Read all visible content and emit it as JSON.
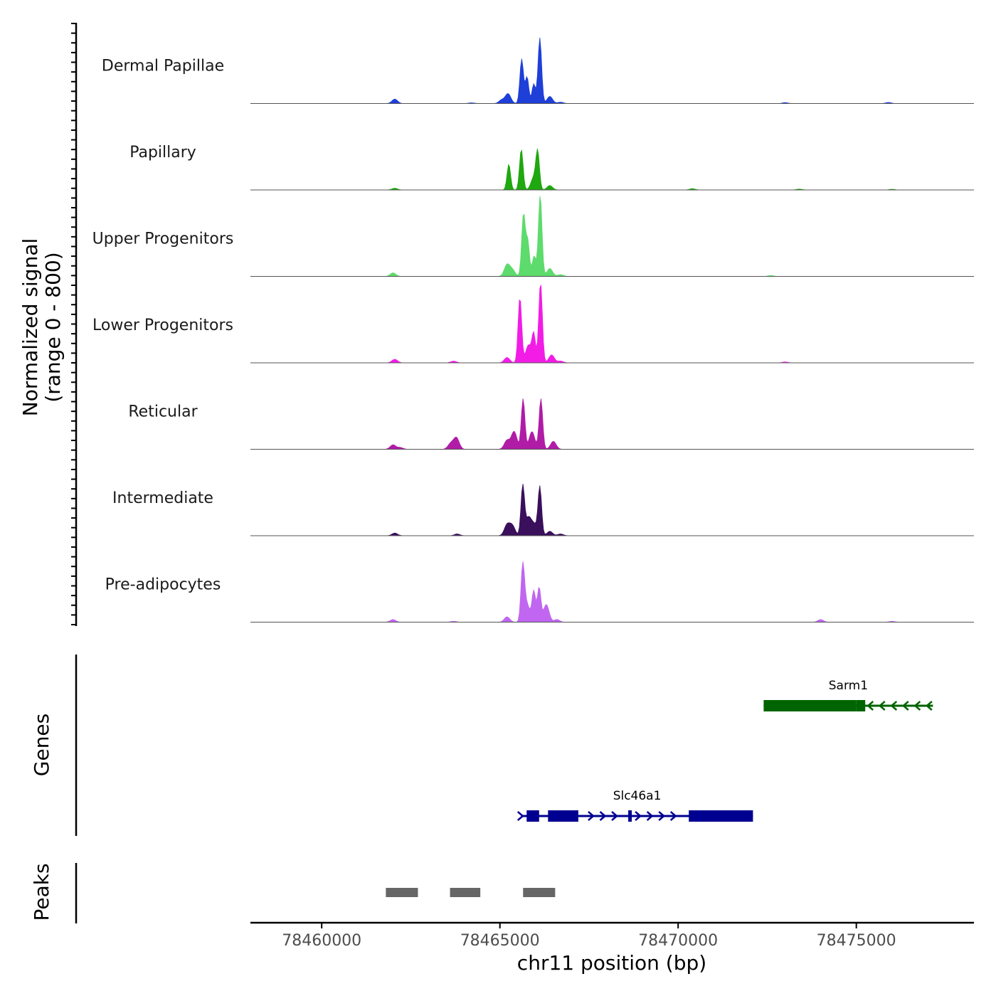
{
  "chart_data": {
    "type": "area",
    "title": "",
    "signal_ylabel": "Normalized signal",
    "signal_range_label": "(range 0 - 800)",
    "ylim": [
      0,
      800
    ],
    "xlabel": "chr11 position (bp)",
    "xlim": [
      78458000,
      78478300
    ],
    "x_ticks": [
      78460000,
      78465000,
      78470000,
      78475000
    ],
    "x_tick_labels": [
      "78460000",
      "78465000",
      "78470000",
      "78475000"
    ],
    "tracks": [
      {
        "name": "Dermal Papillae",
        "color": "#1f3fd9",
        "peaks": [
          [
            78462050,
            50
          ],
          [
            78464200,
            8
          ],
          [
            78465050,
            40
          ],
          [
            78465230,
            110
          ],
          [
            78465610,
            500
          ],
          [
            78465760,
            300
          ],
          [
            78465950,
            220
          ],
          [
            78466120,
            740
          ],
          [
            78466400,
            80
          ],
          [
            78466700,
            15
          ],
          [
            78473000,
            10
          ],
          [
            78475900,
            12
          ]
        ]
      },
      {
        "name": "Papillary",
        "color": "#1fa80f",
        "peaks": [
          [
            78462050,
            20
          ],
          [
            78465250,
            290
          ],
          [
            78465600,
            460
          ],
          [
            78465950,
            140
          ],
          [
            78466060,
            410
          ],
          [
            78466400,
            50
          ],
          [
            78470400,
            15
          ],
          [
            78473400,
            10
          ],
          [
            78476000,
            8
          ]
        ]
      },
      {
        "name": "Upper Progenitors",
        "color": "#5ddb6c",
        "peaks": [
          [
            78462000,
            40
          ],
          [
            78465200,
            130
          ],
          [
            78465350,
            70
          ],
          [
            78465660,
            700
          ],
          [
            78465780,
            400
          ],
          [
            78465960,
            230
          ],
          [
            78466130,
            920
          ],
          [
            78466400,
            90
          ],
          [
            78466700,
            20
          ],
          [
            78472600,
            10
          ]
        ]
      },
      {
        "name": "Lower Progenitors",
        "color": "#f21ce6",
        "peaks": [
          [
            78462050,
            40
          ],
          [
            78463700,
            20
          ],
          [
            78465200,
            60
          ],
          [
            78465560,
            740
          ],
          [
            78465800,
            200
          ],
          [
            78465950,
            320
          ],
          [
            78466140,
            910
          ],
          [
            78466450,
            90
          ],
          [
            78466700,
            20
          ],
          [
            78473000,
            10
          ]
        ]
      },
      {
        "name": "Reticular",
        "color": "#b01ca6",
        "peaks": [
          [
            78462000,
            50
          ],
          [
            78463620,
            65
          ],
          [
            78463780,
            130
          ],
          [
            78465200,
            100
          ],
          [
            78465400,
            200
          ],
          [
            78465650,
            570
          ],
          [
            78465900,
            200
          ],
          [
            78466150,
            570
          ],
          [
            78466500,
            90
          ],
          [
            78462200,
            20
          ]
        ]
      },
      {
        "name": "Intermediate",
        "color": "#3a0f5c",
        "peaks": [
          [
            78462050,
            30
          ],
          [
            78463800,
            20
          ],
          [
            78465200,
            120
          ],
          [
            78465350,
            110
          ],
          [
            78465640,
            560
          ],
          [
            78465800,
            200
          ],
          [
            78465960,
            120
          ],
          [
            78466120,
            550
          ],
          [
            78466400,
            50
          ],
          [
            78466700,
            20
          ]
        ]
      },
      {
        "name": "Pre-adipocytes",
        "color": "#c066f0",
        "peaks": [
          [
            78462000,
            30
          ],
          [
            78463700,
            10
          ],
          [
            78465200,
            60
          ],
          [
            78465640,
            620
          ],
          [
            78465760,
            200
          ],
          [
            78465950,
            350
          ],
          [
            78466100,
            390
          ],
          [
            78466300,
            200
          ],
          [
            78466600,
            30
          ],
          [
            78474000,
            30
          ],
          [
            78476000,
            10
          ]
        ]
      }
    ],
    "genes_label": "Genes",
    "genes": [
      {
        "name": "Sarm1",
        "strand": "-",
        "color": "#006400",
        "start": 78472400,
        "end": 78477150,
        "exons": [
          [
            78472400,
            78475000
          ],
          [
            78475000,
            78475250
          ]
        ]
      },
      {
        "name": "Slc46a1",
        "strand": "+",
        "color": "#000090",
        "start": 78465600,
        "end": 78472100,
        "exons": [
          [
            78465750,
            78466100
          ],
          [
            78466350,
            78467200
          ],
          [
            78468600,
            78468700
          ],
          [
            78470300,
            78472100
          ]
        ]
      }
    ],
    "peaks_label": "Peaks",
    "peak_regions": [
      [
        78461800,
        78462700
      ],
      [
        78463600,
        78464450
      ],
      [
        78465650,
        78466550
      ]
    ]
  }
}
